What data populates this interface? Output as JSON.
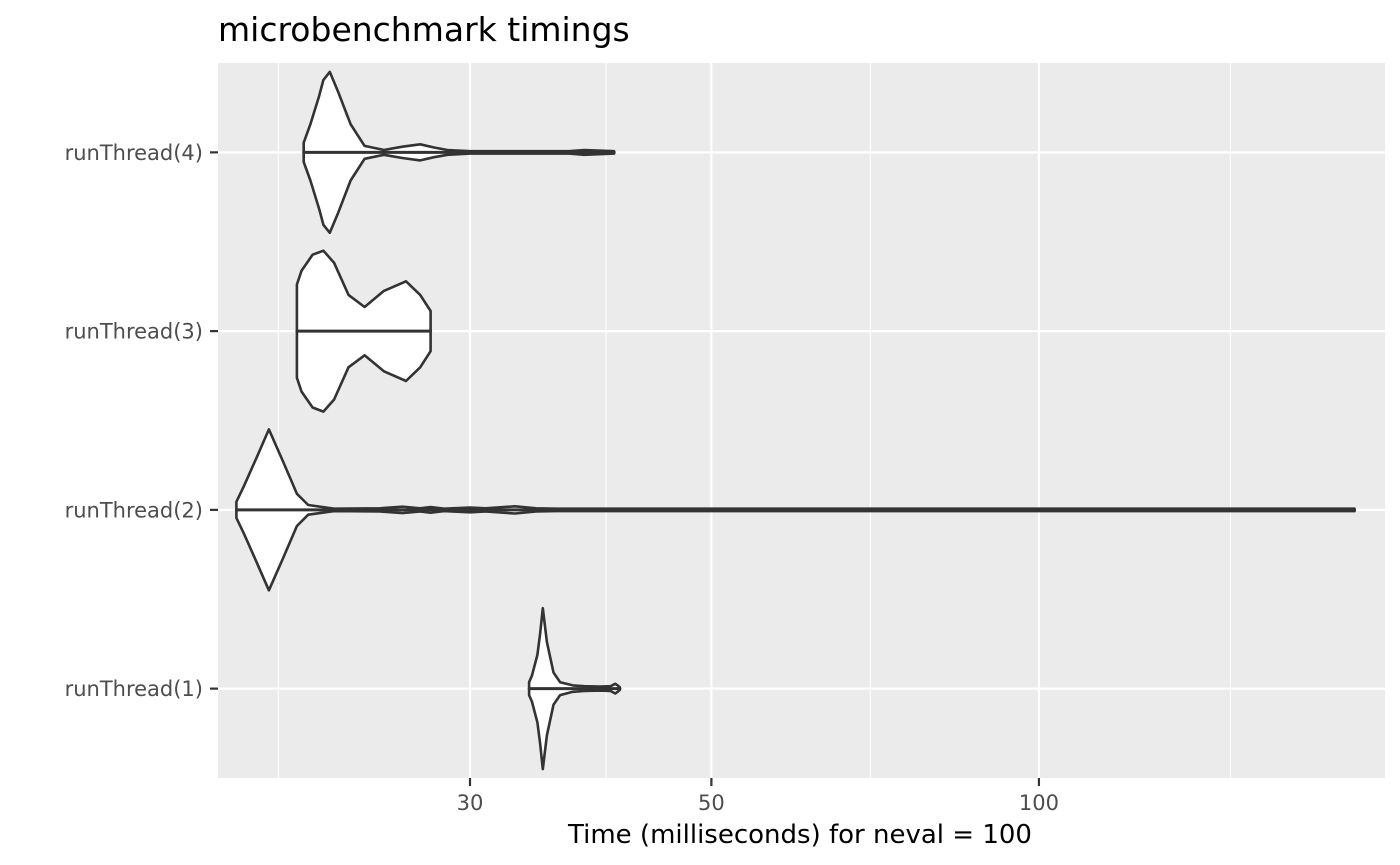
{
  "chart_data": {
    "type": "violin",
    "title": "microbenchmark timings",
    "xlabel": "Time (milliseconds) for neval = 100",
    "ylabel": "",
    "x_scale": "log10",
    "xlim": [
      17.6,
      208
    ],
    "x_ticks": [
      30,
      50,
      100
    ],
    "x_minor_ticks": [
      20,
      40,
      70,
      150
    ],
    "grid": true,
    "legend": "none",
    "categories": [
      "runThread(1)",
      "runThread(2)",
      "runThread(3)",
      "runThread(4)"
    ],
    "series": [
      {
        "category": "runThread(1)",
        "min": 34.0,
        "max": 41.2,
        "density": [
          [
            34.0,
            0.08
          ],
          [
            34.2,
            0.16
          ],
          [
            34.6,
            0.42
          ],
          [
            34.8,
            0.68
          ],
          [
            35.0,
            1.0
          ],
          [
            35.3,
            0.58
          ],
          [
            35.8,
            0.2
          ],
          [
            36.3,
            0.08
          ],
          [
            37.3,
            0.04
          ],
          [
            38.2,
            0.03
          ],
          [
            39.5,
            0.025
          ],
          [
            40.4,
            0.03
          ],
          [
            40.8,
            0.06
          ],
          [
            41.0,
            0.04
          ],
          [
            41.2,
            0.015
          ]
        ]
      },
      {
        "category": "runThread(2)",
        "min": 18.3,
        "max": 195.0,
        "density": [
          [
            18.3,
            0.1
          ],
          [
            18.6,
            0.3
          ],
          [
            19.1,
            0.65
          ],
          [
            19.6,
            1.0
          ],
          [
            20.2,
            0.6
          ],
          [
            20.8,
            0.2
          ],
          [
            21.3,
            0.06
          ],
          [
            22.5,
            0.015
          ],
          [
            24.8,
            0.02
          ],
          [
            26.0,
            0.04
          ],
          [
            27.0,
            0.02
          ],
          [
            27.6,
            0.035
          ],
          [
            28.4,
            0.015
          ],
          [
            30.0,
            0.03
          ],
          [
            31.0,
            0.02
          ],
          [
            33.0,
            0.045
          ],
          [
            34.5,
            0.02
          ],
          [
            36.0,
            0.01
          ],
          [
            60.0,
            0.008
          ],
          [
            195.0,
            0.006
          ]
        ]
      },
      {
        "category": "runThread(3)",
        "min": 20.8,
        "max": 27.6,
        "density": [
          [
            20.8,
            0.58
          ],
          [
            21.0,
            0.75
          ],
          [
            21.5,
            0.95
          ],
          [
            22.0,
            1.0
          ],
          [
            22.5,
            0.85
          ],
          [
            23.2,
            0.45
          ],
          [
            24.0,
            0.3
          ],
          [
            25.0,
            0.5
          ],
          [
            26.2,
            0.62
          ],
          [
            27.0,
            0.45
          ],
          [
            27.6,
            0.25
          ]
        ]
      },
      {
        "category": "runThread(4)",
        "min": 21.1,
        "max": 40.7,
        "density": [
          [
            21.1,
            0.12
          ],
          [
            21.4,
            0.35
          ],
          [
            21.8,
            0.7
          ],
          [
            22.0,
            0.9
          ],
          [
            22.3,
            1.0
          ],
          [
            22.7,
            0.75
          ],
          [
            23.3,
            0.35
          ],
          [
            24.0,
            0.08
          ],
          [
            25.0,
            0.03
          ],
          [
            26.0,
            0.07
          ],
          [
            27.0,
            0.1
          ],
          [
            27.8,
            0.06
          ],
          [
            28.6,
            0.03
          ],
          [
            30.0,
            0.015
          ],
          [
            37.0,
            0.015
          ],
          [
            38.2,
            0.03
          ],
          [
            40.7,
            0.01
          ]
        ]
      }
    ]
  }
}
